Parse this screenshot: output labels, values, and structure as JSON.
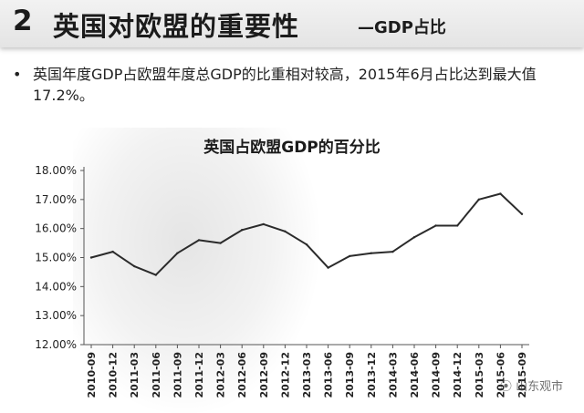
{
  "header": {
    "number": "2",
    "title": "英国对欧盟的重要性",
    "subtitle": "—GDP占比"
  },
  "bullet": {
    "marker": "•",
    "text": "英国年度GDP占欧盟年度总GDP的比重相对较高，2015年6月占比达到最大值17.2%。"
  },
  "watermark": {
    "icon": "wechat-icon",
    "text": "山东观市"
  },
  "chart_data": {
    "type": "line",
    "title": "英国占欧盟GDP的百分比",
    "xlabel": "",
    "ylabel": "",
    "ylim": [
      12,
      18
    ],
    "yticks": [
      "12.00%",
      "13.00%",
      "14.00%",
      "15.00%",
      "16.00%",
      "17.00%",
      "18.00%"
    ],
    "grid": false,
    "legend": "none",
    "line_color": "#2b2b2b",
    "categories": [
      "2010-09",
      "2010-12",
      "2011-03",
      "2011-06",
      "2011-09",
      "2011-12",
      "2012-03",
      "2012-06",
      "2012-09",
      "2012-12",
      "2013-03",
      "2013-06",
      "2013-09",
      "2013-12",
      "2014-03",
      "2014-06",
      "2014-09",
      "2014-12",
      "2015-03",
      "2015-06",
      "2015-09"
    ],
    "values": [
      15.0,
      15.2,
      14.7,
      14.4,
      15.15,
      15.6,
      15.5,
      15.95,
      16.15,
      15.9,
      15.45,
      14.65,
      15.05,
      15.15,
      15.2,
      15.7,
      16.1,
      16.1,
      17.0,
      17.2,
      16.5
    ]
  }
}
